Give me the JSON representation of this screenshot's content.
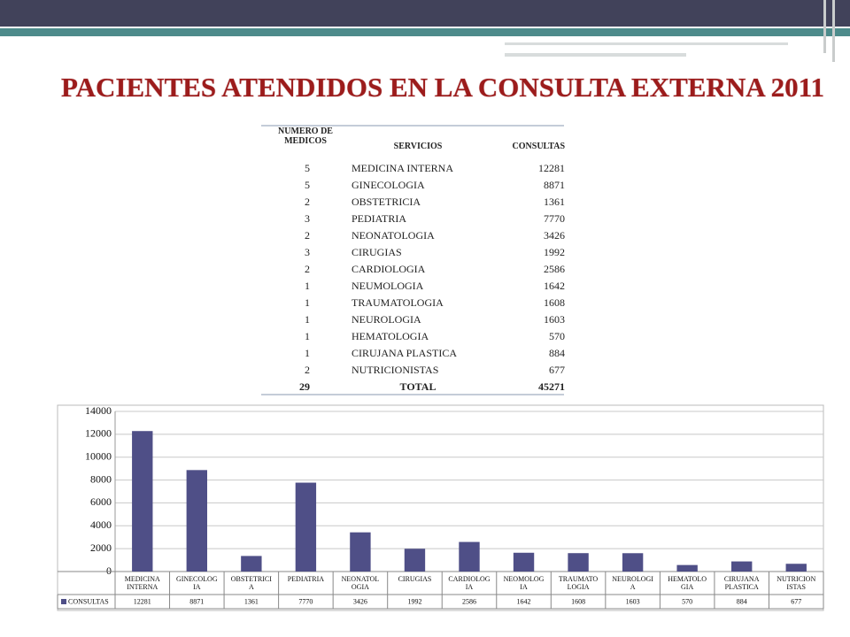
{
  "title": "PACIENTES ATENDIDOS EN LA CONSULTA EXTERNA 2011",
  "table": {
    "headers": [
      "NUMERO DE MEDICOS",
      "SERVICIOS",
      "CONSULTAS"
    ],
    "rows": [
      [
        5,
        "MEDICINA INTERNA",
        12281
      ],
      [
        5,
        "GINECOLOGIA",
        8871
      ],
      [
        2,
        "OBSTETRICIA",
        1361
      ],
      [
        3,
        "PEDIATRIA",
        7770
      ],
      [
        2,
        "NEONATOLOGIA",
        3426
      ],
      [
        3,
        "CIRUGIAS",
        1992
      ],
      [
        2,
        "CARDIOLOGIA",
        2586
      ],
      [
        1,
        "NEUMOLOGIA",
        1642
      ],
      [
        1,
        "TRAUMATOLOGIA",
        1608
      ],
      [
        1,
        "NEUROLOGIA",
        1603
      ],
      [
        1,
        "HEMATOLOGIA",
        570
      ],
      [
        1,
        "CIRUJANA PLASTICA",
        884
      ],
      [
        2,
        "NUTRICIONISTAS",
        677
      ]
    ],
    "total": [
      29,
      "TOTAL",
      45271
    ]
  },
  "chart_data": {
    "type": "bar",
    "categories": [
      "MEDICINA\nINTERNA",
      "GINECOLOG\nIA",
      "OBSTETRICI\nA",
      "PEDIATRIA",
      "NEONATOL\nOGIA",
      "CIRUGIAS",
      "CARDIOLOG\nIA",
      "NEOMOLOG\nIA",
      "TRAUMATO\nLOGIA",
      "NEUROLOGI\nA",
      "HEMATOLO\nGIA",
      "CIRUJANA\nPLASTICA",
      "NUTRICION\nISTAS"
    ],
    "series": [
      {
        "name": "CONSULTAS",
        "color": "#4f4f87",
        "values": [
          12281,
          8871,
          1361,
          7770,
          3426,
          1992,
          2586,
          1642,
          1608,
          1603,
          570,
          884,
          677
        ]
      }
    ],
    "ylim": [
      0,
      14000
    ],
    "yticks": [
      0,
      2000,
      4000,
      6000,
      8000,
      10000,
      12000,
      14000
    ],
    "grid": true
  }
}
